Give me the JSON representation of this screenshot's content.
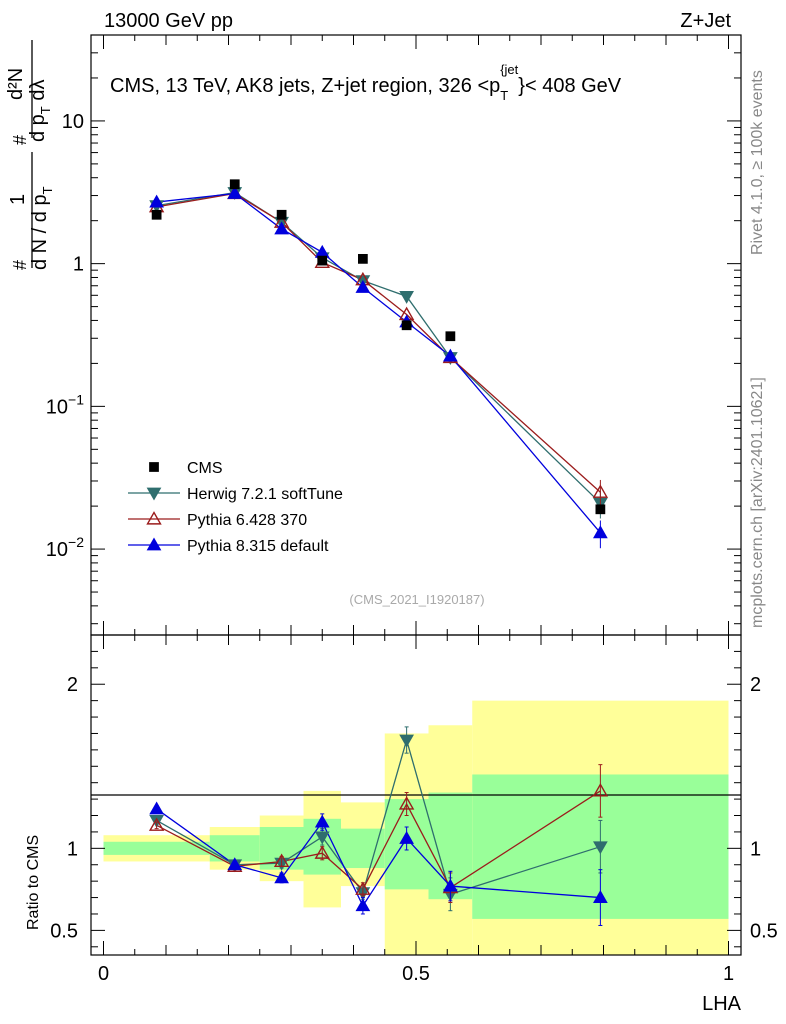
{
  "header": {
    "left": "13000 GeV pp",
    "right": "Z+Jet"
  },
  "side_labels": {
    "rivet": "Rivet 4.1.0, ≥ 100k events",
    "mcplots": "mcplots.cern.ch [arXiv:2401.10621]"
  },
  "watermark": "(CMS_2021_I1920187)",
  "chart_data": [
    {
      "type": "line",
      "title": "CMS, 13 TeV, AK8 jets, Z+jet region, 326 <p_T^{jet}< 408 GeV",
      "title_parts": {
        "main": "CMS, 13 TeV, AK8 jets, Z+jet region, 326 <p",
        "sub": "T",
        "sup": "{jet",
        "tail": "}< 408 GeV"
      },
      "ylabel_parts": {
        "num": "1",
        "den": "d N / d p",
        "den_sub": "T",
        "num2": "d²N",
        "den2": "d p",
        "den2_sub": "T",
        "den2_tail": " dλ",
        "hash": "#"
      },
      "yscale": "log",
      "ylim": [
        0.0025,
        40
      ],
      "xlim": [
        -0.02,
        1.02
      ],
      "yticks": [
        {
          "v": 10,
          "label": "10"
        },
        {
          "v": 1,
          "label": "1"
        },
        {
          "v": 0.1,
          "label": "10",
          "exp": "−1"
        },
        {
          "v": 0.01,
          "label": "10",
          "exp": "−2"
        }
      ],
      "x": [
        0.085,
        0.21,
        0.285,
        0.35,
        0.415,
        0.485,
        0.555,
        0.795
      ],
      "data": {
        "name": "CMS",
        "color": "#000000",
        "values": [
          2.2,
          3.6,
          2.2,
          1.05,
          1.08,
          0.37,
          0.31,
          0.019
        ]
      },
      "series": [
        {
          "name": "Herwig 7.2.1 softTune",
          "color": "#2f6e6e",
          "marker": "triangle-down",
          "values": [
            2.55,
            3.15,
            1.95,
            1.1,
            0.76,
            0.59,
            0.22,
            0.021
          ]
        },
        {
          "name": "Pythia 6.428 370",
          "color": "#9b1c1c",
          "marker": "triangle-open",
          "values": [
            2.5,
            3.1,
            1.95,
            1.02,
            0.77,
            0.44,
            0.22,
            0.025
          ]
        },
        {
          "name": "Pythia 8.315 default",
          "color": "#0000dd",
          "marker": "triangle-up",
          "values": [
            2.7,
            3.1,
            1.75,
            1.2,
            0.68,
            0.39,
            0.225,
            0.013
          ]
        }
      ],
      "legend": [
        "CMS",
        "Herwig 7.2.1 softTune",
        "Pythia 6.428 370",
        "Pythia 8.315 default"
      ]
    },
    {
      "type": "line",
      "ylabel": "Ratio to CMS",
      "xlabel": "LHA",
      "ylim": [
        0.35,
        2.3
      ],
      "xlim": [
        -0.02,
        1.02
      ],
      "yticks": [
        {
          "v": 2,
          "label": "2"
        },
        {
          "v": 1,
          "label": "1"
        },
        {
          "v": 0.5,
          "label": "0.5"
        }
      ],
      "xticks": [
        {
          "v": 0,
          "label": "0"
        },
        {
          "v": 0.5,
          "label": "0.5"
        },
        {
          "v": 1,
          "label": "1"
        }
      ],
      "bands": [
        {
          "x0": 0.0,
          "x1": 0.17,
          "green": [
            0.96,
            1.04
          ],
          "yellow": [
            0.92,
            1.08
          ]
        },
        {
          "x0": 0.17,
          "x1": 0.25,
          "green": [
            0.92,
            1.08
          ],
          "yellow": [
            0.87,
            1.13
          ]
        },
        {
          "x0": 0.25,
          "x1": 0.32,
          "green": [
            0.87,
            1.13
          ],
          "yellow": [
            0.8,
            1.2
          ]
        },
        {
          "x0": 0.32,
          "x1": 0.38,
          "green": [
            0.84,
            1.18
          ],
          "yellow": [
            0.64,
            1.35
          ]
        },
        {
          "x0": 0.38,
          "x1": 0.45,
          "green": [
            0.88,
            1.12
          ],
          "yellow": [
            0.77,
            1.28
          ]
        },
        {
          "x0": 0.45,
          "x1": 0.52,
          "green": [
            0.75,
            1.3
          ],
          "yellow": [
            0.3,
            1.7
          ]
        },
        {
          "x0": 0.52,
          "x1": 0.59,
          "green": [
            0.69,
            1.34
          ],
          "yellow": [
            0.3,
            1.75
          ]
        },
        {
          "x0": 0.59,
          "x1": 1.0,
          "green": [
            0.57,
            1.45
          ],
          "yellow": [
            0.3,
            1.9
          ]
        }
      ],
      "x": [
        0.085,
        0.21,
        0.285,
        0.35,
        0.415,
        0.485,
        0.555,
        0.795
      ],
      "series": [
        {
          "name": "Herwig 7.2.1 softTune",
          "color": "#2f6e6e",
          "marker": "triangle-down",
          "values": [
            1.17,
            0.9,
            0.91,
            1.07,
            0.73,
            1.66,
            0.72,
            1.01
          ],
          "err": [
            0.02,
            0.02,
            0.03,
            0.05,
            0.04,
            0.08,
            0.1,
            0.16
          ]
        },
        {
          "name": "Pythia 6.428 370",
          "color": "#9b1c1c",
          "marker": "triangle-open",
          "values": [
            1.14,
            0.89,
            0.92,
            0.97,
            0.75,
            1.27,
            0.76,
            1.35
          ],
          "err": [
            0.02,
            0.02,
            0.03,
            0.04,
            0.04,
            0.07,
            0.09,
            0.16
          ]
        },
        {
          "name": "Pythia 8.315 default",
          "color": "#0000dd",
          "marker": "triangle-up",
          "values": [
            1.24,
            0.9,
            0.82,
            1.16,
            0.65,
            1.06,
            0.77,
            0.7
          ],
          "err": [
            0.02,
            0.02,
            0.03,
            0.05,
            0.05,
            0.07,
            0.09,
            0.17
          ]
        }
      ]
    }
  ]
}
